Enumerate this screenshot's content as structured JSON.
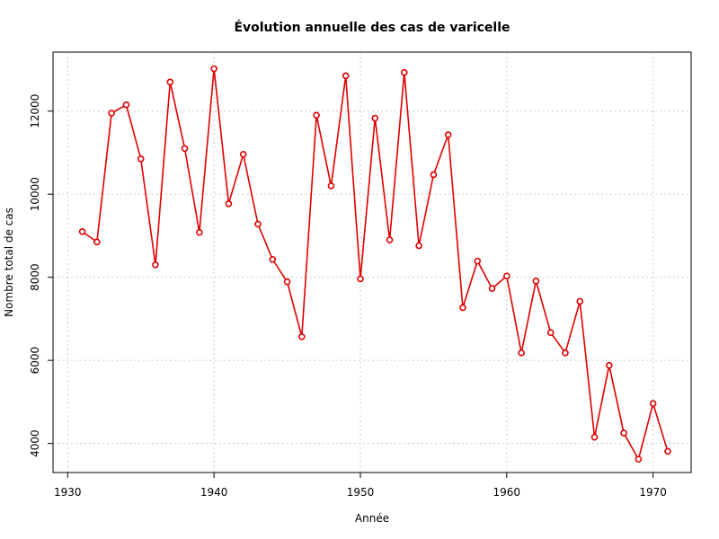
{
  "chart_data": {
    "type": "line",
    "title": "Évolution annuelle des cas de varicelle",
    "xlabel": "Année",
    "ylabel": "Nombre total de cas",
    "xlim": [
      1929.0,
      1972.6
    ],
    "ylim": [
      3300,
      13420
    ],
    "xticks": [
      1930,
      1940,
      1950,
      1960,
      1970
    ],
    "yticks": [
      4000,
      6000,
      8000,
      10000,
      12000
    ],
    "grid": true,
    "color": "#e00000",
    "marker": "open-circle",
    "series": [
      {
        "x": [
          1931,
          1932,
          1933,
          1934,
          1935,
          1936,
          1937,
          1938,
          1939,
          1940,
          1941,
          1942,
          1943,
          1944,
          1945,
          1946,
          1947,
          1948,
          1949,
          1950,
          1951,
          1952,
          1953,
          1954,
          1955,
          1956,
          1957,
          1958,
          1959,
          1960,
          1961,
          1962,
          1963,
          1964,
          1965,
          1966,
          1967,
          1968,
          1969,
          1970,
          1971
        ],
        "y": [
          9100,
          8850,
          11950,
          12150,
          10850,
          8300,
          12700,
          11100,
          9080,
          13020,
          9770,
          10960,
          9280,
          8430,
          7890,
          6570,
          11900,
          10200,
          12850,
          7960,
          11830,
          8900,
          12930,
          8760,
          10470,
          11430,
          7270,
          8390,
          7730,
          8030,
          6180,
          7910,
          6670,
          6180,
          7420,
          4150,
          5880,
          4250,
          3620,
          4960,
          3810
        ]
      }
    ]
  }
}
